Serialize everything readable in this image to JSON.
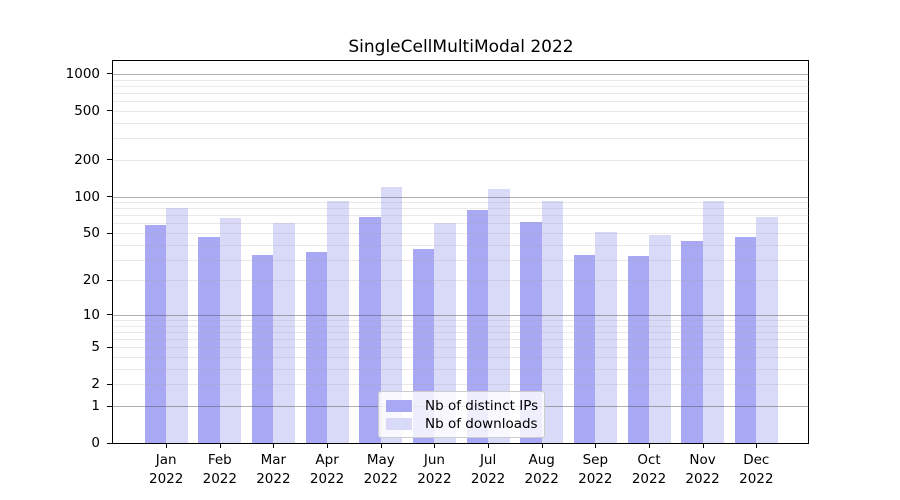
{
  "title": "SingleCellMultiModal 2022",
  "chart_data": {
    "type": "bar",
    "title": "SingleCellMultiModal 2022",
    "categories": [
      "Jan",
      "Feb",
      "Mar",
      "Apr",
      "May",
      "Jun",
      "Jul",
      "Aug",
      "Sep",
      "Oct",
      "Nov",
      "Dec"
    ],
    "category_year": "2022",
    "series": [
      {
        "name": "Nb of distinct IPs",
        "color": "#a8a8f4",
        "values": [
          58,
          46,
          33,
          35,
          68,
          37,
          77,
          62,
          33,
          32,
          43,
          46
        ]
      },
      {
        "name": "Nb of downloads",
        "color": "#d9d9f8",
        "values": [
          80,
          67,
          61,
          92,
          119,
          61,
          115,
          91,
          51,
          48,
          91,
          68
        ]
      }
    ],
    "xlabel": "",
    "ylabel": "",
    "yscale": "log1p",
    "y_ticks": [
      0,
      1,
      2,
      5,
      10,
      20,
      50,
      100,
      200,
      500,
      1000
    ],
    "ylim": [
      0,
      1300
    ],
    "grid": true,
    "legend_position": "lower center"
  },
  "legend": {
    "items": [
      {
        "label": "Nb of distinct IPs",
        "color": "#a8a8f4"
      },
      {
        "label": "Nb of downloads",
        "color": "#d9d9f8"
      }
    ]
  },
  "colors": {
    "background": "#ffffff",
    "axis": "#000000",
    "tick_label": "#000000",
    "grid_major": "#4d4d4d",
    "grid_minor": "#a7a7a7",
    "legend_border": "#cccccc"
  }
}
